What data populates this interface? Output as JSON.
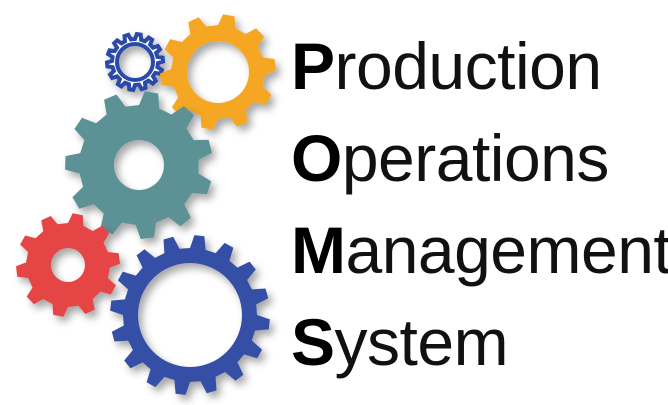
{
  "logo": {
    "lines": [
      {
        "initial": "P",
        "rest": "roduction"
      },
      {
        "initial": "O",
        "rest": "perations"
      },
      {
        "initial": "M",
        "rest": "anagement"
      },
      {
        "initial": "S",
        "rest": "ystem"
      }
    ],
    "gears": [
      {
        "name": "small-navy-gear",
        "color": "#2c4aa8"
      },
      {
        "name": "orange-gear",
        "color": "#f5a623"
      },
      {
        "name": "teal-gear",
        "color": "#5b9296"
      },
      {
        "name": "red-gear",
        "color": "#e64545"
      },
      {
        "name": "blue-gear",
        "color": "#3650a6"
      }
    ]
  }
}
